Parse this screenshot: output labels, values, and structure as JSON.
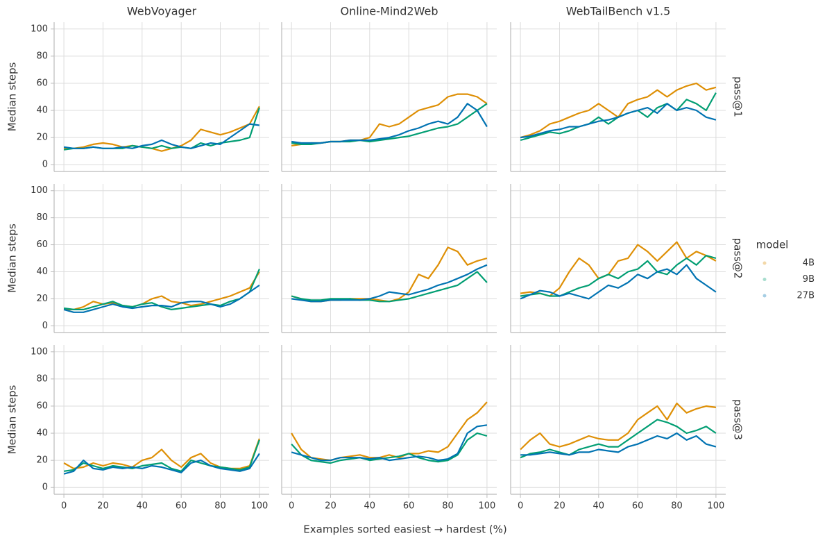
{
  "figure": {
    "xlabel": "Examples sorted easiest → hardest (%)",
    "legend_title": "model",
    "legend_loc": "right"
  },
  "chart_data": [
    {
      "type": "line",
      "title": "WebVoyager",
      "ylabel": "Median steps",
      "xlim": [
        -5,
        105
      ],
      "ylim": [
        -5,
        105
      ],
      "xticks": [
        0,
        20,
        40,
        60,
        80,
        100
      ],
      "yticks": [
        0,
        20,
        40,
        60,
        80,
        100
      ],
      "grid": true,
      "x": [
        0,
        5,
        10,
        15,
        20,
        25,
        30,
        35,
        40,
        45,
        50,
        55,
        60,
        65,
        70,
        75,
        80,
        85,
        90,
        95,
        100
      ],
      "series": [
        {
          "name": "4B",
          "color": "#de8f05",
          "values": [
            12,
            12,
            13,
            15,
            16,
            15,
            13,
            14,
            13,
            12,
            10,
            12,
            14,
            18,
            26,
            24,
            22,
            24,
            27,
            30,
            43
          ]
        },
        {
          "name": "9B",
          "color": "#029e73",
          "values": [
            11,
            12,
            12,
            13,
            12,
            12,
            12,
            14,
            13,
            12,
            14,
            12,
            13,
            12,
            16,
            14,
            16,
            17,
            18,
            20,
            42
          ]
        },
        {
          "name": "27B",
          "color": "#0173b2",
          "values": [
            13,
            12,
            12,
            13,
            12,
            12,
            13,
            12,
            14,
            15,
            18,
            15,
            13,
            12,
            14,
            16,
            15,
            20,
            25,
            30,
            29
          ]
        }
      ]
    },
    {
      "type": "line",
      "title": "Online-Mind2Web",
      "xlim": [
        -5,
        105
      ],
      "ylim": [
        -5,
        105
      ],
      "xticks": [
        0,
        20,
        40,
        60,
        80,
        100
      ],
      "yticks": [
        0,
        20,
        40,
        60,
        80,
        100
      ],
      "grid": true,
      "x": [
        0,
        5,
        10,
        15,
        20,
        25,
        30,
        35,
        40,
        45,
        50,
        55,
        60,
        65,
        70,
        75,
        80,
        85,
        90,
        95,
        100
      ],
      "series": [
        {
          "name": "4B",
          "color": "#de8f05",
          "values": [
            14,
            15,
            16,
            16,
            17,
            17,
            18,
            18,
            20,
            30,
            28,
            30,
            35,
            40,
            42,
            44,
            50,
            52,
            52,
            50,
            45
          ]
        },
        {
          "name": "9B",
          "color": "#029e73",
          "values": [
            16,
            15,
            15,
            16,
            17,
            17,
            17,
            18,
            17,
            18,
            19,
            20,
            21,
            23,
            25,
            27,
            28,
            30,
            35,
            40,
            45
          ]
        },
        {
          "name": "27B",
          "color": "#0173b2",
          "values": [
            17,
            16,
            16,
            16,
            17,
            17,
            18,
            18,
            18,
            19,
            20,
            22,
            25,
            27,
            30,
            32,
            30,
            35,
            45,
            40,
            28
          ]
        }
      ]
    },
    {
      "type": "line",
      "title": "WebTailBench v1.5",
      "row_label": "pass@1",
      "xlim": [
        -5,
        105
      ],
      "ylim": [
        -5,
        105
      ],
      "xticks": [
        0,
        20,
        40,
        60,
        80,
        100
      ],
      "yticks": [
        0,
        20,
        40,
        60,
        80,
        100
      ],
      "grid": true,
      "x": [
        0,
        5,
        10,
        15,
        20,
        25,
        30,
        35,
        40,
        45,
        50,
        55,
        60,
        65,
        70,
        75,
        80,
        85,
        90,
        95,
        100
      ],
      "series": [
        {
          "name": "4B",
          "color": "#de8f05",
          "values": [
            20,
            22,
            25,
            30,
            32,
            35,
            38,
            40,
            45,
            40,
            35,
            45,
            48,
            50,
            55,
            50,
            55,
            58,
            60,
            55,
            57
          ]
        },
        {
          "name": "9B",
          "color": "#029e73",
          "values": [
            18,
            20,
            22,
            24,
            23,
            25,
            28,
            30,
            35,
            30,
            35,
            38,
            40,
            35,
            42,
            45,
            40,
            48,
            45,
            40,
            53
          ]
        },
        {
          "name": "27B",
          "color": "#0173b2",
          "values": [
            20,
            21,
            23,
            25,
            26,
            28,
            28,
            30,
            32,
            33,
            35,
            38,
            40,
            42,
            38,
            45,
            40,
            42,
            40,
            35,
            33
          ]
        }
      ]
    },
    {
      "type": "line",
      "ylabel": "Median steps",
      "xlim": [
        -5,
        105
      ],
      "ylim": [
        -5,
        105
      ],
      "xticks": [
        0,
        20,
        40,
        60,
        80,
        100
      ],
      "yticks": [
        0,
        20,
        40,
        60,
        80,
        100
      ],
      "grid": true,
      "x": [
        0,
        5,
        10,
        15,
        20,
        25,
        30,
        35,
        40,
        45,
        50,
        55,
        60,
        65,
        70,
        75,
        80,
        85,
        90,
        95,
        100
      ],
      "series": [
        {
          "name": "4B",
          "color": "#de8f05",
          "values": [
            12,
            12,
            14,
            18,
            16,
            17,
            15,
            14,
            16,
            20,
            22,
            18,
            17,
            15,
            16,
            18,
            20,
            22,
            25,
            28,
            40
          ]
        },
        {
          "name": "9B",
          "color": "#029e73",
          "values": [
            13,
            12,
            12,
            14,
            16,
            18,
            15,
            14,
            16,
            17,
            14,
            12,
            13,
            14,
            15,
            16,
            15,
            18,
            20,
            25,
            42
          ]
        },
        {
          "name": "27B",
          "color": "#0173b2",
          "values": [
            12,
            10,
            10,
            12,
            14,
            16,
            14,
            13,
            14,
            15,
            15,
            14,
            17,
            18,
            18,
            16,
            14,
            16,
            20,
            25,
            30
          ]
        }
      ]
    },
    {
      "type": "line",
      "xlim": [
        -5,
        105
      ],
      "ylim": [
        -5,
        105
      ],
      "xticks": [
        0,
        20,
        40,
        60,
        80,
        100
      ],
      "yticks": [
        0,
        20,
        40,
        60,
        80,
        100
      ],
      "grid": true,
      "x": [
        0,
        5,
        10,
        15,
        20,
        25,
        30,
        35,
        40,
        45,
        50,
        55,
        60,
        65,
        70,
        75,
        80,
        85,
        90,
        95,
        100
      ],
      "series": [
        {
          "name": "4B",
          "color": "#de8f05",
          "values": [
            22,
            20,
            18,
            18,
            19,
            19,
            20,
            20,
            20,
            19,
            18,
            20,
            25,
            38,
            35,
            45,
            58,
            55,
            45,
            48,
            50
          ]
        },
        {
          "name": "9B",
          "color": "#029e73",
          "values": [
            22,
            20,
            19,
            19,
            20,
            20,
            20,
            19,
            19,
            18,
            18,
            19,
            20,
            22,
            24,
            26,
            28,
            30,
            35,
            40,
            32
          ]
        },
        {
          "name": "27B",
          "color": "#0173b2",
          "values": [
            20,
            19,
            18,
            18,
            19,
            19,
            19,
            19,
            20,
            22,
            25,
            24,
            23,
            25,
            27,
            30,
            32,
            35,
            38,
            42,
            45
          ]
        }
      ]
    },
    {
      "type": "line",
      "row_label": "pass@2",
      "xlim": [
        -5,
        105
      ],
      "ylim": [
        -5,
        105
      ],
      "xticks": [
        0,
        20,
        40,
        60,
        80,
        100
      ],
      "yticks": [
        0,
        20,
        40,
        60,
        80,
        100
      ],
      "grid": true,
      "x": [
        0,
        5,
        10,
        15,
        20,
        25,
        30,
        35,
        40,
        45,
        50,
        55,
        60,
        65,
        70,
        75,
        80,
        85,
        90,
        95,
        100
      ],
      "series": [
        {
          "name": "4B",
          "color": "#de8f05",
          "values": [
            24,
            25,
            24,
            22,
            28,
            40,
            50,
            45,
            35,
            38,
            48,
            50,
            60,
            55,
            48,
            55,
            62,
            50,
            55,
            52,
            48
          ]
        },
        {
          "name": "9B",
          "color": "#029e73",
          "values": [
            22,
            23,
            24,
            22,
            22,
            25,
            28,
            30,
            35,
            38,
            35,
            40,
            42,
            48,
            40,
            38,
            45,
            50,
            45,
            52,
            50
          ]
        },
        {
          "name": "27B",
          "color": "#0173b2",
          "values": [
            20,
            23,
            26,
            25,
            22,
            24,
            22,
            20,
            25,
            30,
            28,
            32,
            38,
            35,
            40,
            42,
            38,
            45,
            35,
            30,
            25
          ]
        }
      ]
    },
    {
      "type": "line",
      "ylabel": "Median steps",
      "xlim": [
        -5,
        105
      ],
      "ylim": [
        -5,
        105
      ],
      "xticks": [
        0,
        20,
        40,
        60,
        80,
        100
      ],
      "yticks": [
        0,
        20,
        40,
        60,
        80,
        100
      ],
      "grid": true,
      "x": [
        0,
        5,
        10,
        15,
        20,
        25,
        30,
        35,
        40,
        45,
        50,
        55,
        60,
        65,
        70,
        75,
        80,
        85,
        90,
        95,
        100
      ],
      "series": [
        {
          "name": "4B",
          "color": "#de8f05",
          "values": [
            18,
            14,
            15,
            18,
            16,
            18,
            17,
            15,
            20,
            22,
            28,
            20,
            15,
            22,
            25,
            18,
            15,
            14,
            14,
            16,
            36
          ]
        },
        {
          "name": "9B",
          "color": "#029e73",
          "values": [
            12,
            13,
            18,
            16,
            14,
            16,
            15,
            14,
            16,
            17,
            18,
            14,
            12,
            20,
            18,
            16,
            15,
            14,
            13,
            15,
            35
          ]
        },
        {
          "name": "27B",
          "color": "#0173b2",
          "values": [
            10,
            12,
            20,
            14,
            13,
            15,
            14,
            15,
            14,
            16,
            15,
            13,
            11,
            18,
            20,
            16,
            14,
            13,
            12,
            14,
            25
          ]
        }
      ]
    },
    {
      "type": "line",
      "xlim": [
        -5,
        105
      ],
      "ylim": [
        -5,
        105
      ],
      "xticks": [
        0,
        20,
        40,
        60,
        80,
        100
      ],
      "yticks": [
        0,
        20,
        40,
        60,
        80,
        100
      ],
      "grid": true,
      "x": [
        0,
        5,
        10,
        15,
        20,
        25,
        30,
        35,
        40,
        45,
        50,
        55,
        60,
        65,
        70,
        75,
        80,
        85,
        90,
        95,
        100
      ],
      "series": [
        {
          "name": "4B",
          "color": "#de8f05",
          "values": [
            40,
            28,
            22,
            21,
            20,
            22,
            23,
            24,
            22,
            22,
            24,
            22,
            25,
            25,
            27,
            26,
            30,
            40,
            50,
            55,
            63
          ]
        },
        {
          "name": "9B",
          "color": "#029e73",
          "values": [
            32,
            24,
            20,
            19,
            18,
            20,
            21,
            22,
            20,
            21,
            22,
            23,
            25,
            22,
            20,
            19,
            20,
            24,
            35,
            40,
            38
          ]
        },
        {
          "name": "27B",
          "color": "#0173b2",
          "values": [
            26,
            24,
            22,
            20,
            20,
            22,
            22,
            22,
            21,
            22,
            20,
            21,
            22,
            23,
            22,
            20,
            21,
            25,
            40,
            45,
            46
          ]
        }
      ]
    },
    {
      "type": "line",
      "row_label": "pass@3",
      "xlim": [
        -5,
        105
      ],
      "ylim": [
        -5,
        105
      ],
      "xticks": [
        0,
        20,
        40,
        60,
        80,
        100
      ],
      "yticks": [
        0,
        20,
        40,
        60,
        80,
        100
      ],
      "grid": true,
      "x": [
        0,
        5,
        10,
        15,
        20,
        25,
        30,
        35,
        40,
        45,
        50,
        55,
        60,
        65,
        70,
        75,
        80,
        85,
        90,
        95,
        100
      ],
      "series": [
        {
          "name": "4B",
          "color": "#de8f05",
          "values": [
            28,
            35,
            40,
            32,
            30,
            32,
            35,
            38,
            36,
            35,
            35,
            40,
            50,
            55,
            60,
            50,
            62,
            55,
            58,
            60,
            59
          ]
        },
        {
          "name": "9B",
          "color": "#029e73",
          "values": [
            22,
            25,
            26,
            28,
            26,
            24,
            28,
            30,
            32,
            30,
            30,
            35,
            40,
            45,
            50,
            48,
            45,
            40,
            42,
            45,
            40
          ]
        },
        {
          "name": "27B",
          "color": "#0173b2",
          "values": [
            24,
            24,
            25,
            26,
            25,
            24,
            26,
            26,
            28,
            27,
            26,
            30,
            32,
            35,
            38,
            36,
            40,
            35,
            38,
            32,
            30
          ]
        }
      ]
    }
  ]
}
